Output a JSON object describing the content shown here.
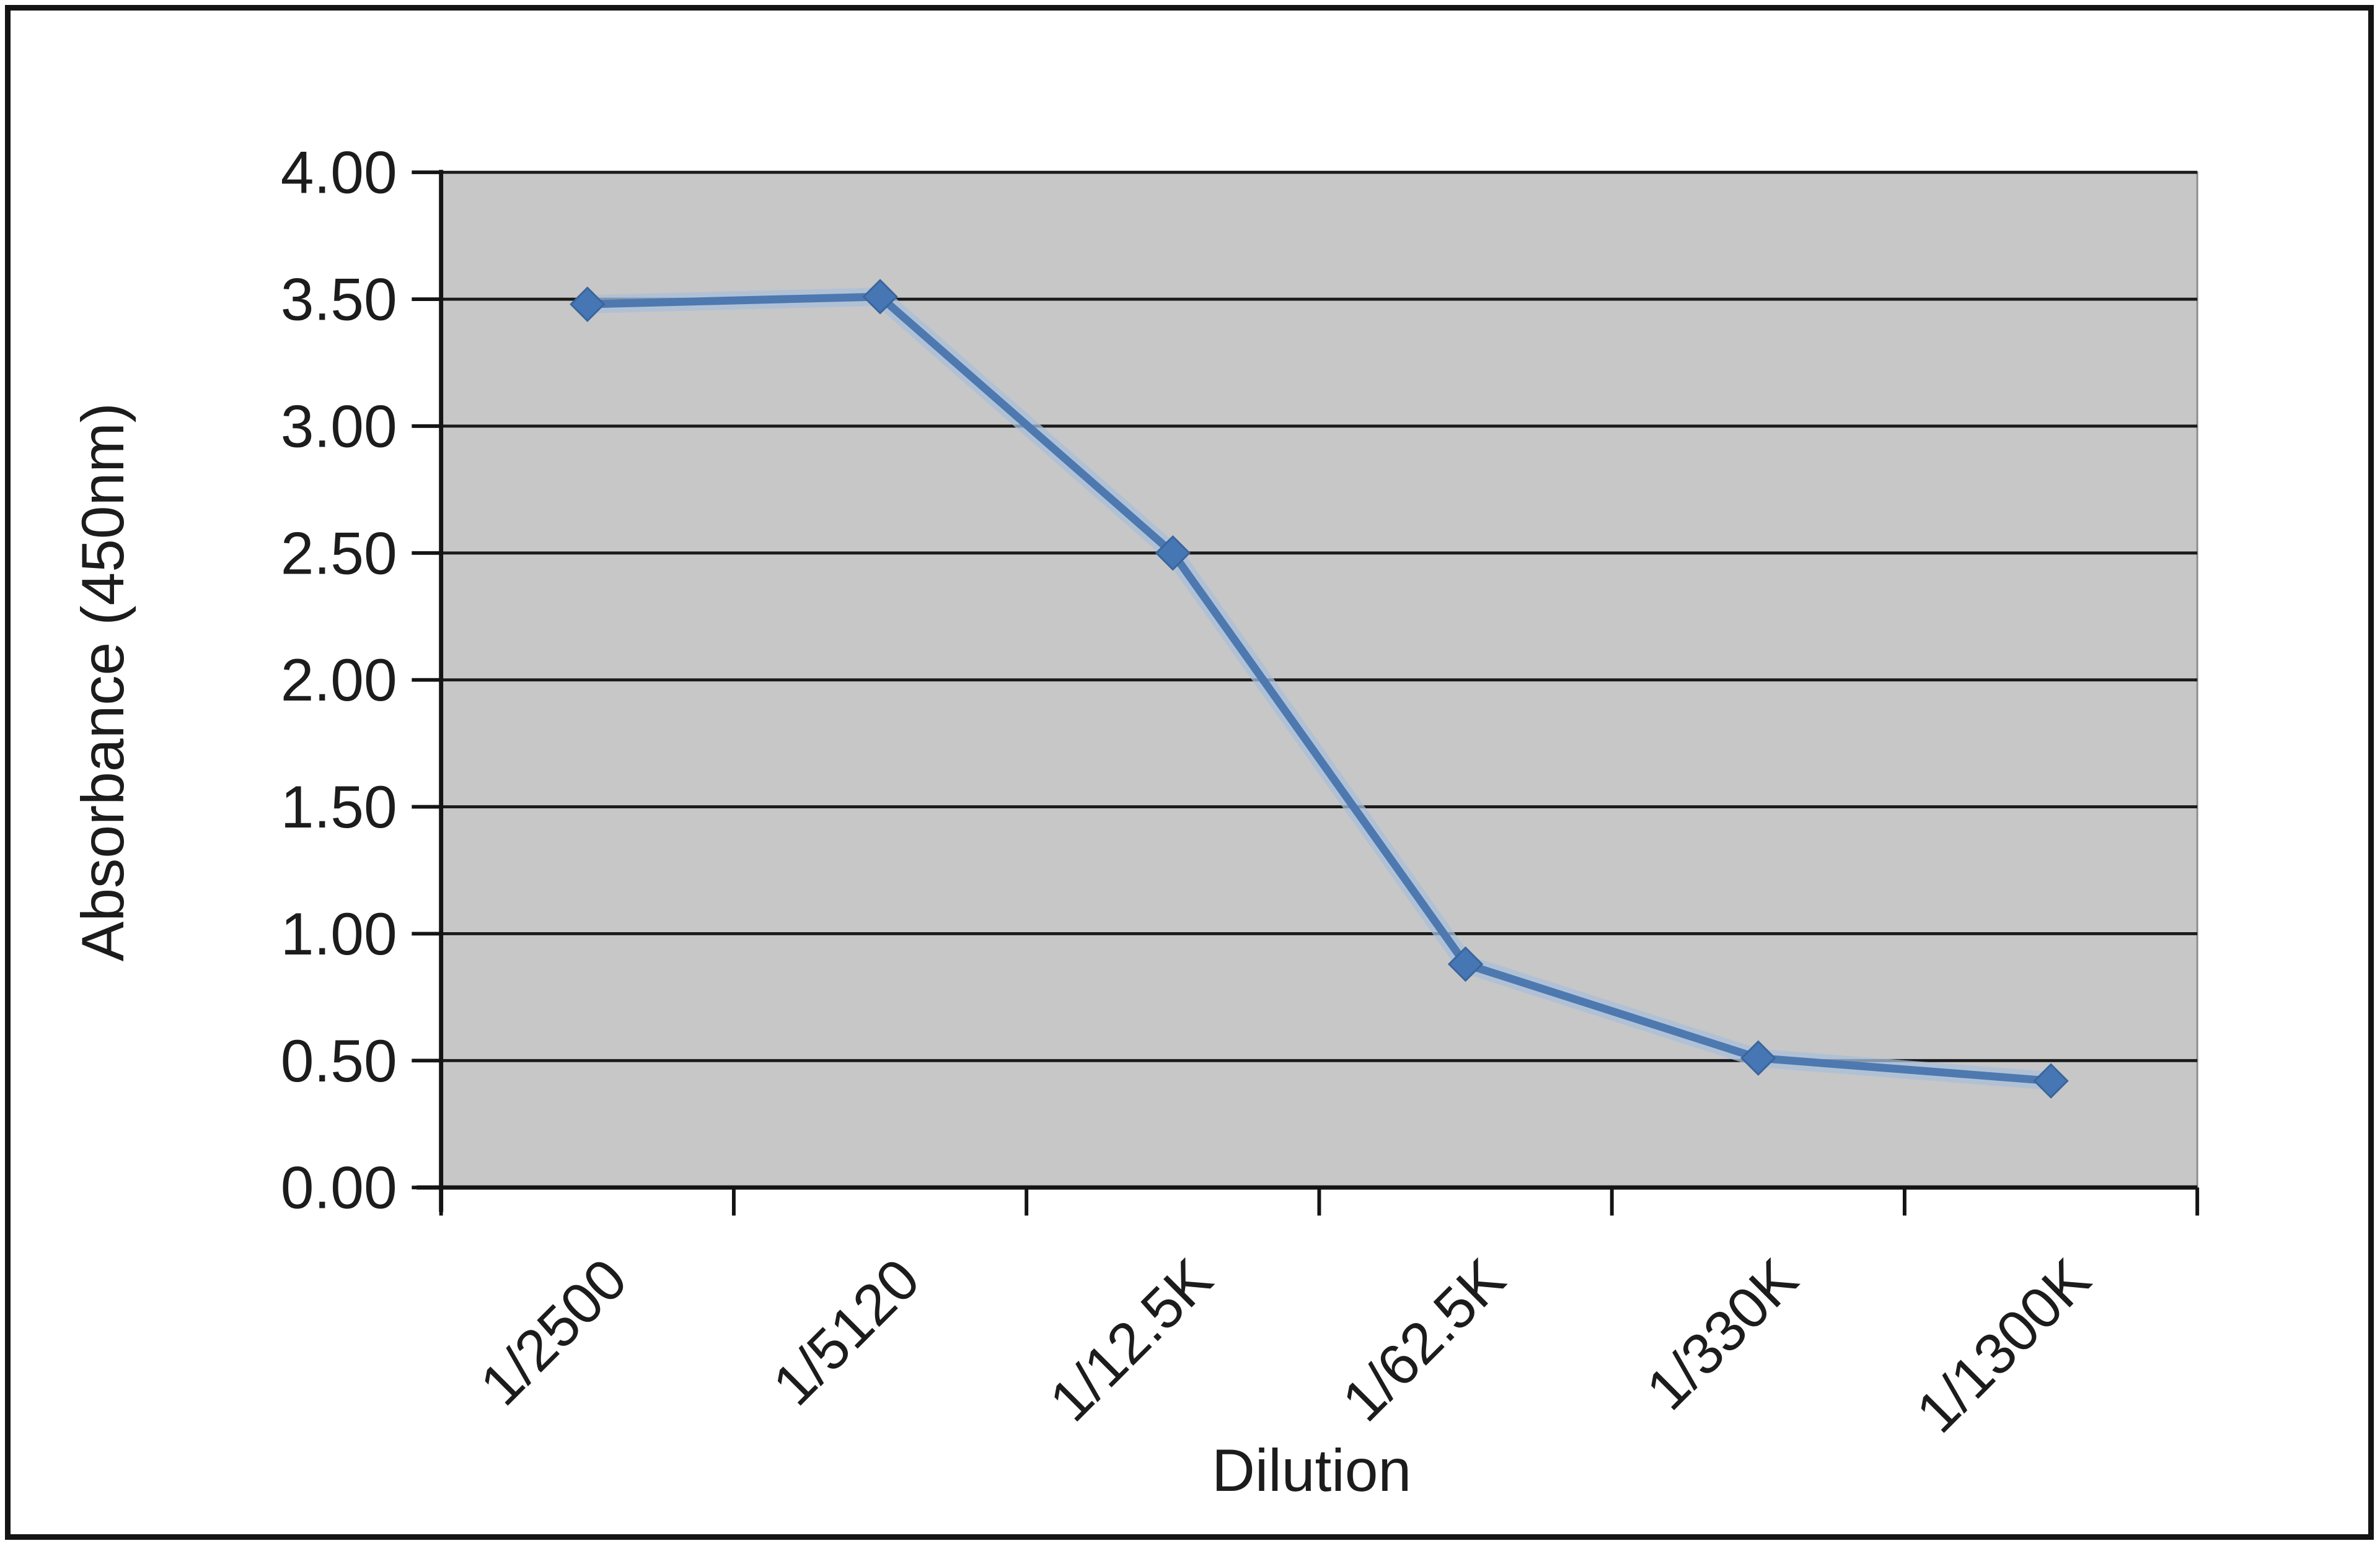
{
  "chart_data": {
    "type": "line",
    "title": "",
    "xlabel": "Dilution",
    "ylabel": "Absorbance (450nm)",
    "categories": [
      "1/2500",
      "1/5120",
      "1/12.5K",
      "1/62.5K",
      "1/330K",
      "1/1300K"
    ],
    "series": [
      {
        "values": [
          3.48,
          3.51,
          2.5,
          0.88,
          0.51,
          0.42
        ]
      }
    ],
    "ylim": [
      0,
      4
    ],
    "ytick_step": 0.5,
    "ytick_labels": [
      "0.00",
      "0.50",
      "1.00",
      "1.50",
      "2.00",
      "2.50",
      "3.00",
      "3.50",
      "4.00"
    ],
    "grid": "horizontal",
    "legend": "none",
    "marker": "diamond"
  },
  "styles": {
    "plot_bg": "#c7c7c7",
    "plot_border": "#8d8d8d",
    "grid_color": "#1b1b1b",
    "axis_color": "#141414",
    "line_color": "#4d79b0",
    "line_halo": "#a9bfd9",
    "marker_color": "#4677b4",
    "marker_edge": "#3a659c",
    "text_color": "#1c1c1c",
    "frame_color": "#141414"
  }
}
